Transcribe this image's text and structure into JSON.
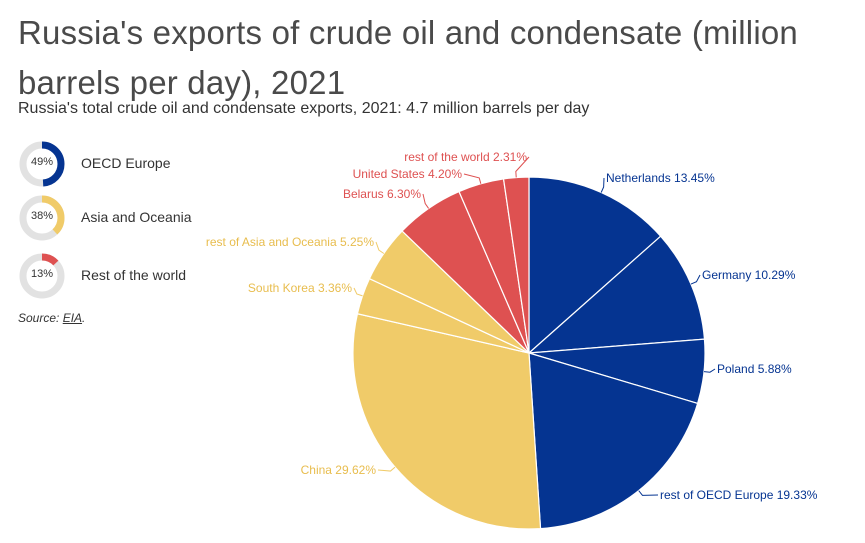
{
  "header": {
    "title": "Russia's exports of crude oil and condensate (million barrels per day), 2021",
    "subtitle": "Russia's total crude oil and condensate exports, 2021: 4.7 million barrels per day"
  },
  "legend": [
    {
      "name": "OECD Europe",
      "percent": 49,
      "percent_label": "49%",
      "color": "#053491"
    },
    {
      "name": "Asia and Oceania",
      "percent": 38,
      "percent_label": "38%",
      "color": "#f0cb69"
    },
    {
      "name": "Rest of the world",
      "percent": 13,
      "percent_label": "13%",
      "color": "#de5151"
    }
  ],
  "source": {
    "prefix": "Source: ",
    "link_text": "EIA",
    "suffix": "."
  },
  "colors": {
    "track": "#e2e2e2",
    "separator": "#ffffff"
  },
  "chart_data": {
    "type": "pie",
    "title": "Russia's exports of crude oil and condensate (million barrels per day), 2021",
    "start": "12 o'clock, clockwise",
    "slices": [
      {
        "label": "Netherlands",
        "value": 13.45,
        "value_label": "13.45%",
        "group": "OECD Europe",
        "color": "#053491"
      },
      {
        "label": "Germany",
        "value": 10.29,
        "value_label": "10.29%",
        "group": "OECD Europe",
        "color": "#053491"
      },
      {
        "label": "Poland",
        "value": 5.88,
        "value_label": "5.88%",
        "group": "OECD Europe",
        "color": "#053491"
      },
      {
        "label": "rest of OECD Europe",
        "value": 19.33,
        "value_label": "19.33%",
        "group": "OECD Europe",
        "color": "#053491"
      },
      {
        "label": "China",
        "value": 29.62,
        "value_label": "29.62%",
        "group": "Asia and Oceania",
        "color": "#f0cb69"
      },
      {
        "label": "South Korea",
        "value": 3.36,
        "value_label": "3.36%",
        "group": "Asia and Oceania",
        "color": "#f0cb69"
      },
      {
        "label": "rest of Asia and Oceania",
        "value": 5.25,
        "value_label": "5.25%",
        "group": "Asia and Oceania",
        "color": "#f0cb69"
      },
      {
        "label": "Belarus",
        "value": 6.3,
        "value_label": "6.30%",
        "group": "Rest of the world",
        "color": "#de5151"
      },
      {
        "label": "United States",
        "value": 4.2,
        "value_label": "4.20%",
        "group": "Rest of the world",
        "color": "#de5151"
      },
      {
        "label": "rest of the world",
        "value": 2.31,
        "value_label": "2.31%",
        "group": "Rest of the world",
        "color": "#de5151"
      }
    ]
  }
}
